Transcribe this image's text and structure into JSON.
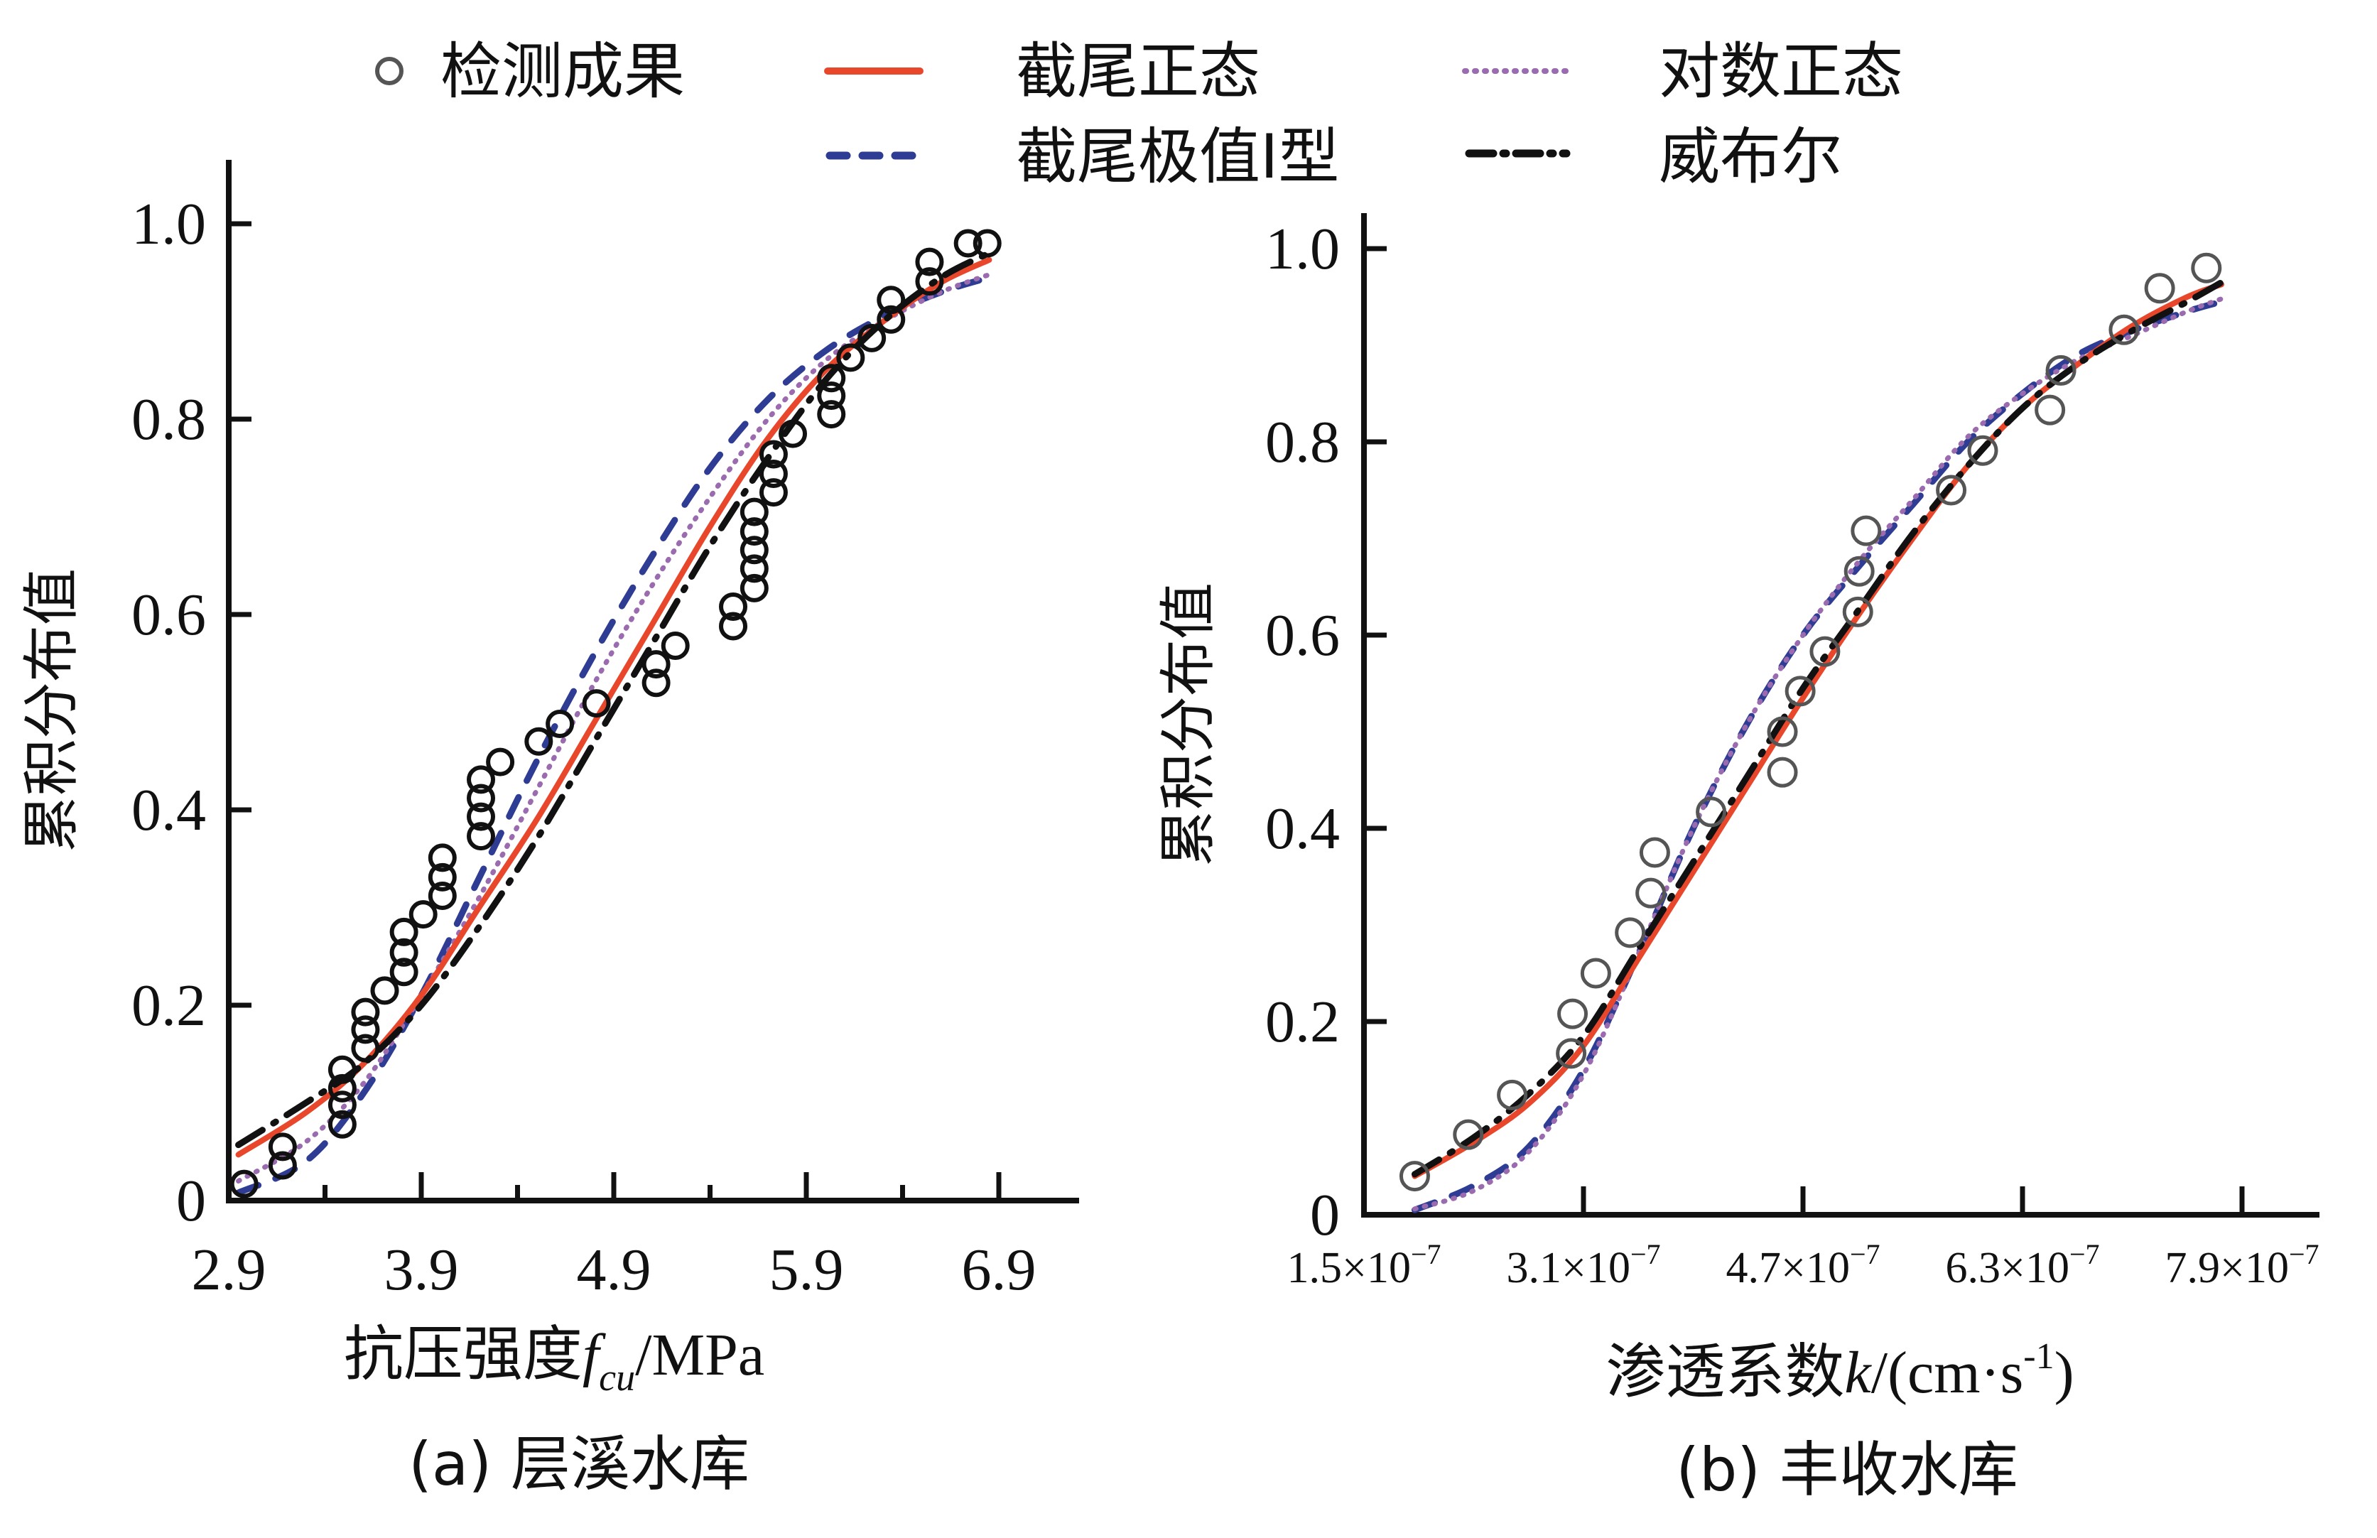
{
  "legend": {
    "items": [
      {
        "label": "检测成果",
        "kind": "marker",
        "color": "#555555"
      },
      {
        "label": "截尾正态",
        "kind": "solid",
        "color": "#e8472c"
      },
      {
        "label": "对数正态",
        "kind": "dotted",
        "color": "#9b6bb0"
      },
      {
        "label": "截尾极值I型",
        "kind": "dashed",
        "color": "#2e3d93"
      },
      {
        "label": "威布尔",
        "kind": "dashdot",
        "color": "#111111"
      }
    ]
  },
  "chart_data": [
    {
      "type": "line",
      "caption": "(a) 层溪水库",
      "xlabel_main": "抗压强度",
      "xlabel_var": "f",
      "xlabel_sub": "cu",
      "xlabel_unit": "/MPa",
      "ylabel": "累积分布值",
      "xlim": [
        2.9,
        7.3
      ],
      "ylim": [
        0,
        1.05
      ],
      "xticks": [
        2.9,
        3.9,
        4.9,
        5.9,
        6.9
      ],
      "xtick_labels": [
        "2.9",
        "3.9",
        "4.9",
        "5.9",
        "6.9"
      ],
      "xminor": [
        3.4,
        4.4,
        5.4,
        6.4
      ],
      "yticks": [
        0,
        0.2,
        0.4,
        0.6,
        0.8,
        1.0
      ],
      "ytick_labels": [
        "0",
        "0.2",
        "0.4",
        "0.6",
        "0.8",
        "1.0"
      ],
      "grid": false,
      "scatter": {
        "name": "检测成果",
        "points": [
          [
            2.98,
            0.017
          ],
          [
            3.18,
            0.036
          ],
          [
            3.18,
            0.055
          ],
          [
            3.49,
            0.078
          ],
          [
            3.49,
            0.098
          ],
          [
            3.49,
            0.115
          ],
          [
            3.49,
            0.134
          ],
          [
            3.61,
            0.156
          ],
          [
            3.61,
            0.175
          ],
          [
            3.61,
            0.193
          ],
          [
            3.71,
            0.215
          ],
          [
            3.81,
            0.234
          ],
          [
            3.81,
            0.254
          ],
          [
            3.81,
            0.275
          ],
          [
            3.91,
            0.293
          ],
          [
            4.01,
            0.312
          ],
          [
            4.01,
            0.331
          ],
          [
            4.01,
            0.351
          ],
          [
            4.21,
            0.373
          ],
          [
            4.21,
            0.393
          ],
          [
            4.21,
            0.412
          ],
          [
            4.21,
            0.431
          ],
          [
            4.31,
            0.449
          ],
          [
            4.51,
            0.47
          ],
          [
            4.62,
            0.488
          ],
          [
            4.81,
            0.509
          ],
          [
            5.12,
            0.53
          ],
          [
            5.12,
            0.549
          ],
          [
            5.22,
            0.568
          ],
          [
            5.52,
            0.588
          ],
          [
            5.52,
            0.608
          ],
          [
            5.63,
            0.627
          ],
          [
            5.63,
            0.647
          ],
          [
            5.63,
            0.666
          ],
          [
            5.63,
            0.685
          ],
          [
            5.63,
            0.705
          ],
          [
            5.73,
            0.725
          ],
          [
            5.73,
            0.744
          ],
          [
            5.73,
            0.764
          ],
          [
            5.83,
            0.785
          ],
          [
            6.03,
            0.805
          ],
          [
            6.03,
            0.824
          ],
          [
            6.03,
            0.842
          ],
          [
            6.13,
            0.863
          ],
          [
            6.24,
            0.883
          ],
          [
            6.34,
            0.902
          ],
          [
            6.34,
            0.922
          ],
          [
            6.54,
            0.941
          ],
          [
            6.54,
            0.961
          ],
          [
            6.74,
            0.98
          ],
          [
            6.84,
            0.98
          ]
        ]
      },
      "series": [
        {
          "name": "截尾正态",
          "style": "solid",
          "points": [
            [
              2.95,
              0.047
            ],
            [
              3.3,
              0.09
            ],
            [
              3.6,
              0.14
            ],
            [
              3.9,
              0.21
            ],
            [
              4.2,
              0.3
            ],
            [
              4.5,
              0.39
            ],
            [
              4.8,
              0.49
            ],
            [
              5.1,
              0.59
            ],
            [
              5.4,
              0.69
            ],
            [
              5.7,
              0.78
            ],
            [
              6.0,
              0.85
            ],
            [
              6.3,
              0.9
            ],
            [
              6.6,
              0.94
            ],
            [
              6.85,
              0.963
            ]
          ]
        },
        {
          "name": "对数正态",
          "style": "dotted",
          "points": [
            [
              2.95,
              0.02
            ],
            [
              3.3,
              0.06
            ],
            [
              3.6,
              0.12
            ],
            [
              3.9,
              0.21
            ],
            [
              4.2,
              0.31
            ],
            [
              4.5,
              0.42
            ],
            [
              4.8,
              0.53
            ],
            [
              5.1,
              0.63
            ],
            [
              5.4,
              0.72
            ],
            [
              5.7,
              0.8
            ],
            [
              6.0,
              0.86
            ],
            [
              6.3,
              0.9
            ],
            [
              6.6,
              0.93
            ],
            [
              6.85,
              0.948
            ]
          ]
        },
        {
          "name": "截尾极值I型",
          "style": "dashed",
          "points": [
            [
              2.95,
              0.008
            ],
            [
              3.3,
              0.04
            ],
            [
              3.6,
              0.11
            ],
            [
              3.9,
              0.21
            ],
            [
              4.2,
              0.33
            ],
            [
              4.5,
              0.45
            ],
            [
              4.8,
              0.56
            ],
            [
              5.1,
              0.66
            ],
            [
              5.4,
              0.75
            ],
            [
              5.7,
              0.82
            ],
            [
              6.0,
              0.87
            ],
            [
              6.3,
              0.905
            ],
            [
              6.6,
              0.93
            ],
            [
              6.85,
              0.945
            ]
          ]
        },
        {
          "name": "威布尔",
          "style": "dashdot",
          "points": [
            [
              2.95,
              0.057
            ],
            [
              3.3,
              0.1
            ],
            [
              3.6,
              0.14
            ],
            [
              3.9,
              0.2
            ],
            [
              4.2,
              0.28
            ],
            [
              4.5,
              0.37
            ],
            [
              4.8,
              0.47
            ],
            [
              5.1,
              0.57
            ],
            [
              5.4,
              0.67
            ],
            [
              5.7,
              0.76
            ],
            [
              6.0,
              0.84
            ],
            [
              6.3,
              0.9
            ],
            [
              6.6,
              0.945
            ],
            [
              6.85,
              0.97
            ]
          ]
        }
      ]
    },
    {
      "type": "line",
      "caption": "(b) 丰收水库",
      "xlabel_main": "渗透系数",
      "xlabel_var": "k",
      "xlabel_unit": "/(cm·s",
      "xlabel_sup": "-1",
      "xlabel_close": ")",
      "ylabel": "累积分布值",
      "x_scale_note": "×10⁻⁷",
      "xlim": [
        1.5,
        8.6
      ],
      "ylim": [
        0,
        1.05
      ],
      "xticks": [
        1.5,
        3.1,
        4.7,
        6.3,
        7.9
      ],
      "xtick_labels": [
        "1.5×10",
        "3.1×10",
        "4.7×10",
        "6.3×10",
        "7.9×10"
      ],
      "xtick_exp": "−7",
      "yticks": [
        0,
        0.2,
        0.4,
        0.6,
        0.8,
        1.0
      ],
      "ytick_labels": [
        "0",
        "0.2",
        "0.4",
        "0.6",
        "0.8",
        "1.0"
      ],
      "grid": false,
      "scatter": {
        "name": "检测成果",
        "points": [
          [
            1.87,
            0.04
          ],
          [
            2.26,
            0.083
          ],
          [
            2.58,
            0.124
          ],
          [
            3.01,
            0.167
          ],
          [
            3.02,
            0.208
          ],
          [
            3.19,
            0.25
          ],
          [
            3.44,
            0.292
          ],
          [
            3.59,
            0.333
          ],
          [
            3.62,
            0.375
          ],
          [
            4.03,
            0.417
          ],
          [
            4.55,
            0.458
          ],
          [
            4.55,
            0.5
          ],
          [
            4.68,
            0.542
          ],
          [
            4.86,
            0.583
          ],
          [
            5.1,
            0.624
          ],
          [
            5.11,
            0.666
          ],
          [
            5.16,
            0.708
          ],
          [
            5.78,
            0.75
          ],
          [
            6.01,
            0.791
          ],
          [
            6.5,
            0.833
          ],
          [
            6.58,
            0.874
          ],
          [
            7.04,
            0.916
          ],
          [
            7.3,
            0.959
          ],
          [
            7.64,
            0.98
          ]
        ]
      },
      "series": [
        {
          "name": "截尾正态",
          "style": "solid",
          "points": [
            [
              1.87,
              0.04
            ],
            [
              2.3,
              0.075
            ],
            [
              2.7,
              0.115
            ],
            [
              3.1,
              0.175
            ],
            [
              3.5,
              0.265
            ],
            [
              3.9,
              0.355
            ],
            [
              4.3,
              0.445
            ],
            [
              4.7,
              0.535
            ],
            [
              5.1,
              0.62
            ],
            [
              5.5,
              0.7
            ],
            [
              5.9,
              0.775
            ],
            [
              6.3,
              0.835
            ],
            [
              6.7,
              0.88
            ],
            [
              7.1,
              0.92
            ],
            [
              7.5,
              0.95
            ],
            [
              7.75,
              0.963
            ]
          ]
        },
        {
          "name": "对数正态",
          "style": "dotted",
          "points": [
            [
              1.87,
              0.006
            ],
            [
              2.3,
              0.025
            ],
            [
              2.7,
              0.065
            ],
            [
              3.1,
              0.145
            ],
            [
              3.5,
              0.27
            ],
            [
              3.9,
              0.4
            ],
            [
              4.3,
              0.51
            ],
            [
              4.7,
              0.6
            ],
            [
              5.1,
              0.675
            ],
            [
              5.5,
              0.74
            ],
            [
              5.9,
              0.805
            ],
            [
              6.3,
              0.85
            ],
            [
              6.7,
              0.885
            ],
            [
              7.1,
              0.91
            ],
            [
              7.5,
              0.935
            ],
            [
              7.75,
              0.948
            ]
          ]
        },
        {
          "name": "截尾极值I型",
          "style": "dashed",
          "points": [
            [
              1.87,
              0.005
            ],
            [
              2.3,
              0.03
            ],
            [
              2.7,
              0.07
            ],
            [
              3.1,
              0.15
            ],
            [
              3.5,
              0.27
            ],
            [
              3.9,
              0.4
            ],
            [
              4.3,
              0.51
            ],
            [
              4.7,
              0.6
            ],
            [
              5.1,
              0.67
            ],
            [
              5.5,
              0.735
            ],
            [
              5.9,
              0.8
            ],
            [
              6.3,
              0.85
            ],
            [
              6.7,
              0.89
            ],
            [
              7.1,
              0.915
            ],
            [
              7.5,
              0.935
            ],
            [
              7.75,
              0.945
            ]
          ]
        },
        {
          "name": "威布尔",
          "style": "dashdot",
          "points": [
            [
              1.87,
              0.042
            ],
            [
              2.3,
              0.08
            ],
            [
              2.7,
              0.125
            ],
            [
              3.1,
              0.185
            ],
            [
              3.5,
              0.275
            ],
            [
              3.9,
              0.365
            ],
            [
              4.3,
              0.455
            ],
            [
              4.7,
              0.545
            ],
            [
              5.1,
              0.625
            ],
            [
              5.5,
              0.705
            ],
            [
              5.9,
              0.775
            ],
            [
              6.3,
              0.835
            ],
            [
              6.7,
              0.88
            ],
            [
              7.1,
              0.915
            ],
            [
              7.5,
              0.945
            ],
            [
              7.75,
              0.965
            ]
          ]
        }
      ]
    }
  ]
}
